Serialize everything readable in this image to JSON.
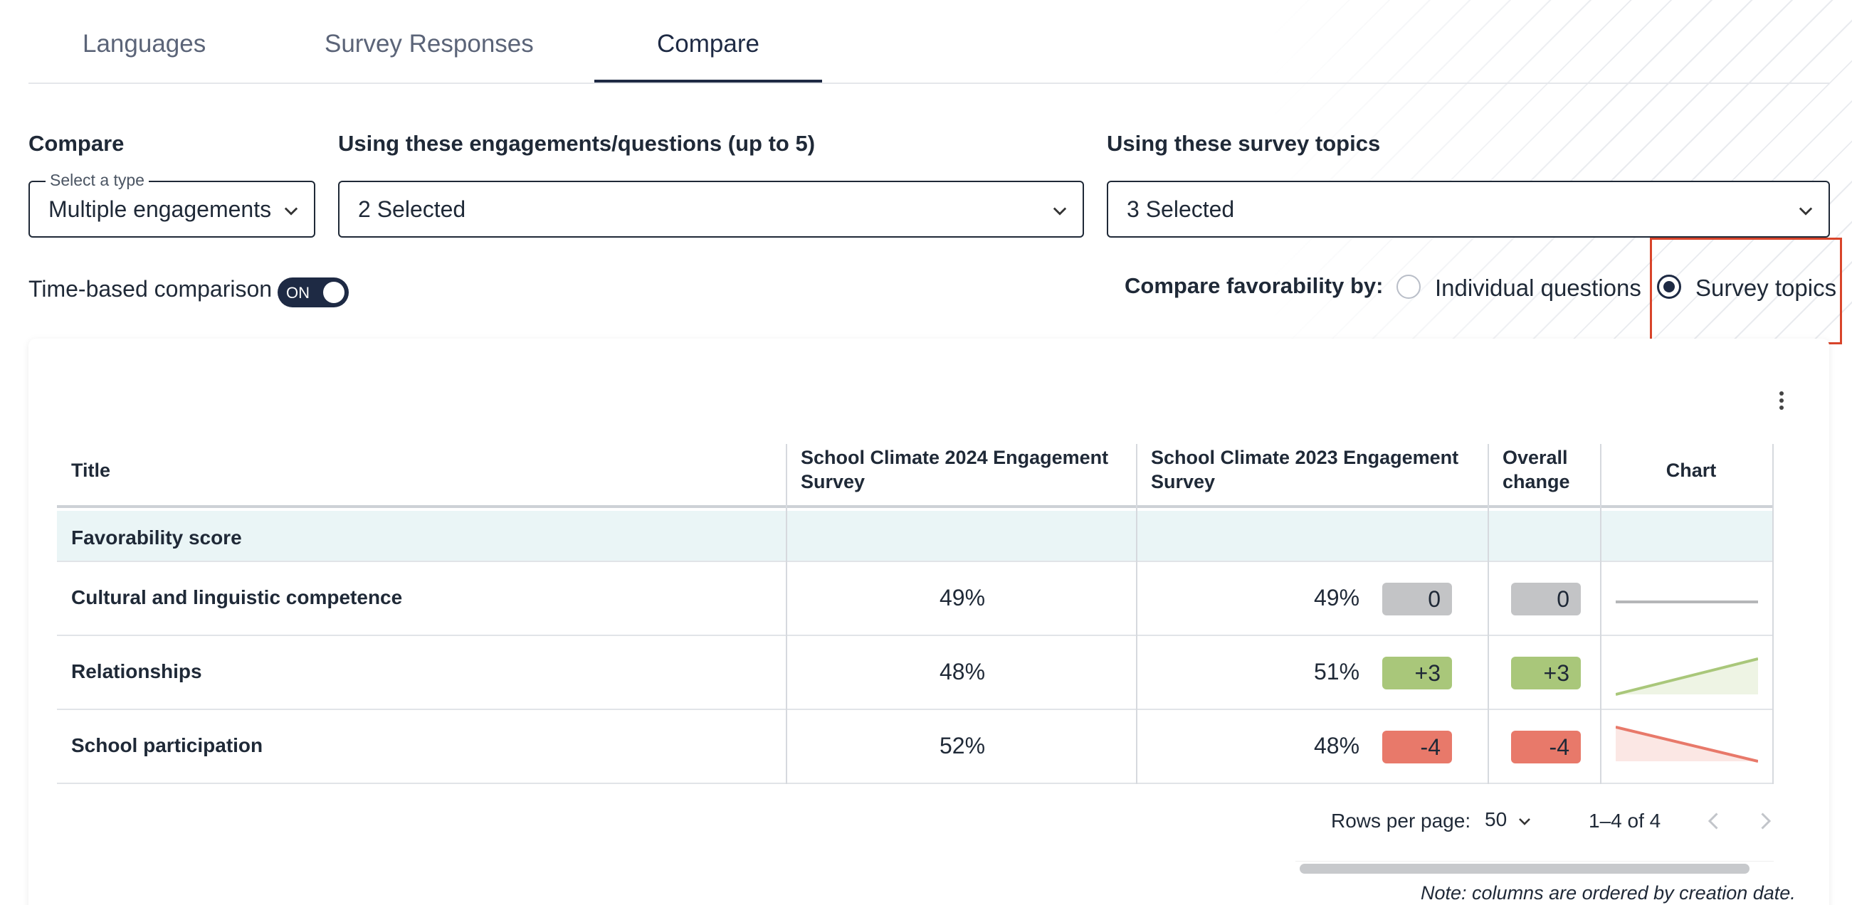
{
  "tabs": [
    {
      "label": "Languages"
    },
    {
      "label": "Survey Responses"
    },
    {
      "label": "Compare"
    }
  ],
  "controls": {
    "compare_label": "Compare",
    "type_select_legend": "Select a type",
    "type_select_value": "Multiple engagements",
    "engagements_label": "Using these engagements/questions (up to 5)",
    "engagements_value": "2 Selected",
    "topics_label": "Using these survey topics",
    "topics_value": "3 Selected",
    "time_based_label": "Time-based comparison",
    "toggle_text": "ON",
    "favorability_label": "Compare favorability by:",
    "radio_individual": "Individual questions",
    "radio_topics": "Survey topics",
    "selected_radio": "Survey topics"
  },
  "table": {
    "headers": {
      "title": "Title",
      "col1_line1": "School Climate 2024 Engagement",
      "col1_line2": "Survey",
      "col2_line1": "School Climate 2023 Engagement",
      "col2_line2": "Survey",
      "change_line1": "Overall",
      "change_line2": "change",
      "chart": "Chart"
    },
    "group_label": "Favorability score",
    "rows": [
      {
        "title": "Cultural and linguistic competence",
        "v2024": "49%",
        "v2023": "49%",
        "delta": "0",
        "overall": "0",
        "trend": "neutral",
        "trend_values": [
          49,
          49
        ]
      },
      {
        "title": "Relationships",
        "v2024": "48%",
        "v2023": "51%",
        "delta": "+3",
        "overall": "+3",
        "trend": "up",
        "trend_values": [
          48,
          51
        ]
      },
      {
        "title": "School participation",
        "v2024": "52%",
        "v2023": "48%",
        "delta": "-4",
        "overall": "-4",
        "trend": "down",
        "trend_values": [
          52,
          48
        ]
      }
    ]
  },
  "pagination": {
    "rows_per_page_label": "Rows per page:",
    "rows_per_page_value": "50",
    "range": "1–4 of 4"
  },
  "note": "Note: columns are ordered by creation date.",
  "colors": {
    "primary": "#1e2a44",
    "positive": "#a9c77a",
    "negative": "#e8796a",
    "neutral": "#c3c4c6",
    "highlight": "#d8442a",
    "group_row": "#eaf5f6"
  }
}
